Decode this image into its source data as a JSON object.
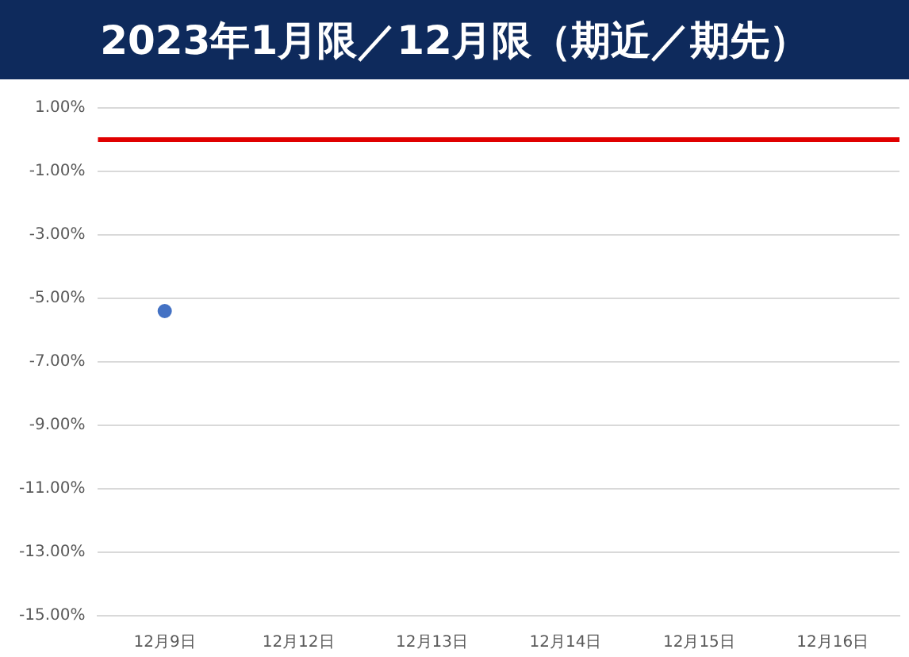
{
  "chart_data": {
    "type": "scatter",
    "title": "2023年1月限／12月限（期近／期先）",
    "categories": [
      "12月9日",
      "12月12日",
      "12月13日",
      "12月14日",
      "12月15日",
      "12月16日"
    ],
    "series": [
      {
        "color": "#4472c4",
        "values": [
          -5.4,
          null,
          null,
          null,
          null,
          null
        ]
      }
    ],
    "ref_lines": [
      {
        "axis": "y",
        "value": 0,
        "color": "#e00000"
      }
    ],
    "ylim": [
      -15,
      1
    ],
    "yticks": [
      {
        "value": 1,
        "label": "1.00%"
      },
      {
        "value": -1,
        "label": "-1.00%"
      },
      {
        "value": -3,
        "label": "-3.00%"
      },
      {
        "value": -5,
        "label": "-5.00%"
      },
      {
        "value": -7,
        "label": "-7.00%"
      },
      {
        "value": -9,
        "label": "-9.00%"
      },
      {
        "value": -11,
        "label": "-11.00%"
      },
      {
        "value": -13,
        "label": "-13.00%"
      },
      {
        "value": -15,
        "label": "-15.00%"
      }
    ],
    "grid": "y",
    "marker": "circle",
    "legend": false
  }
}
